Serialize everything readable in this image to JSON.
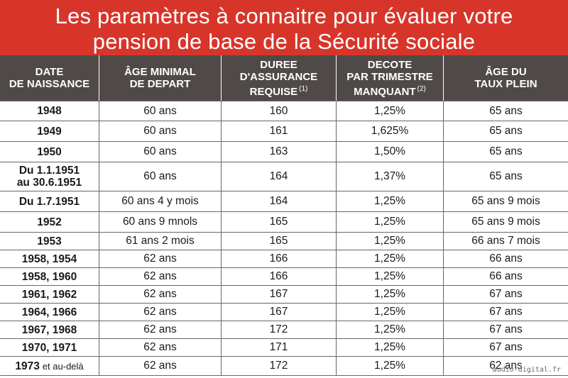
{
  "title": {
    "line1": "Les paramètres à connaitre pour évaluer votre",
    "line2": "pension de base de la Sécurité sociale"
  },
  "headers": {
    "birth_date": [
      "DATE",
      "DE NAISSANCE"
    ],
    "min_age": [
      "ÂGE MINIMAL",
      "DE DEPART"
    ],
    "duration": [
      "DUREE",
      "D'ASSURANCE",
      "REQUISE"
    ],
    "duration_note": "(1)",
    "discount": [
      "DECOTE",
      "PAR TRIMESTRE",
      "MANQUANT"
    ],
    "discount_note": "(2)",
    "full_rate_age": [
      "ÂGE DU",
      "TAUX PLEIN"
    ]
  },
  "rows": [
    {
      "date": "1948",
      "date_suffix": "",
      "min_age": "60 ans",
      "duration": "160",
      "discount": "1,25%",
      "full_age": "65 ans"
    },
    {
      "date": "1949",
      "date_suffix": "",
      "min_age": "60 ans",
      "duration": "161",
      "discount": "1,625%",
      "full_age": "65 ans"
    },
    {
      "date": "1950",
      "date_suffix": "",
      "min_age": "60 ans",
      "duration": "163",
      "discount": "1,50%",
      "full_age": "65 ans"
    },
    {
      "date": "Du 1.1.1951",
      "date_line2": "au 30.6.1951",
      "date_suffix": "",
      "min_age": "60 ans",
      "duration": "164",
      "discount": "1,37%",
      "full_age": "65 ans"
    },
    {
      "date": "Du 1.7.1951",
      "date_suffix": "",
      "min_age": "60 ans 4 y mois",
      "duration": "164",
      "discount": "1,25%",
      "full_age": "65 ans 9 mois"
    },
    {
      "date": "1952",
      "date_suffix": "",
      "min_age": "60 ans 9 mnols",
      "duration": "165",
      "discount": "1,25%",
      "full_age": "65 ans 9 mois"
    },
    {
      "date": "1953",
      "date_suffix": "",
      "min_age": "61 ans 2 mois",
      "duration": "165",
      "discount": "1,25%",
      "full_age": "66 ans 7 mois"
    },
    {
      "date": "1958, 1954",
      "date_suffix": "",
      "min_age": "62 ans",
      "duration": "166",
      "discount": "1,25%",
      "full_age": "66 ans"
    },
    {
      "date": "1958, 1960",
      "date_suffix": "",
      "min_age": "62 ans",
      "duration": "166",
      "discount": "1,25%",
      "full_age": "66 ans"
    },
    {
      "date": "1961, 1962",
      "date_suffix": "",
      "min_age": "62 ans",
      "duration": "167",
      "discount": "1,25%",
      "full_age": "67 ans"
    },
    {
      "date": "1964, 1966",
      "date_suffix": "",
      "min_age": "62 ans",
      "duration": "167",
      "discount": "1,25%",
      "full_age": "67 ans"
    },
    {
      "date": "1967, 1968",
      "date_suffix": "",
      "min_age": "62 ans",
      "duration": "172",
      "discount": "1,25%",
      "full_age": "67 ans"
    },
    {
      "date": "1970, 1971",
      "date_suffix": "",
      "min_age": "62 ans",
      "duration": "171",
      "discount": "1,25%",
      "full_age": "67 ans"
    },
    {
      "date": "1973",
      "date_suffix": "et au-delà",
      "min_age": "62 ans",
      "duration": "172",
      "discount": "1,25%",
      "full_age": "62 ans"
    }
  ],
  "watermark": "audio-digital.fr"
}
